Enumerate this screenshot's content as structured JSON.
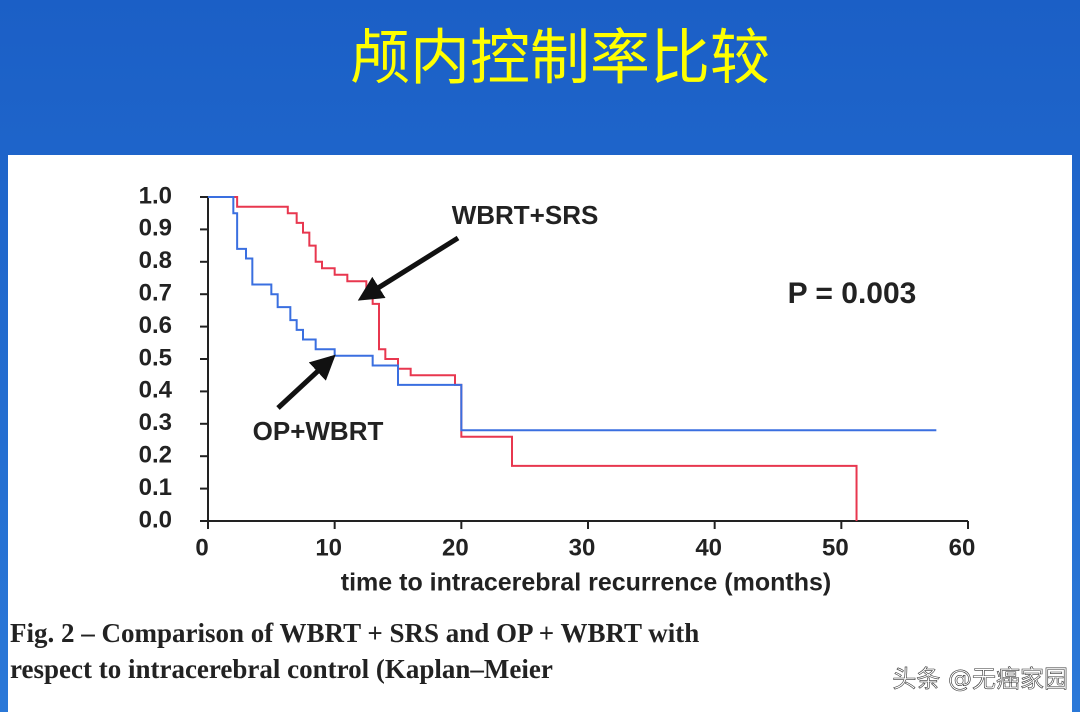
{
  "title": "颅内控制率比较",
  "chart_data": {
    "type": "line",
    "step": true,
    "series": [
      {
        "name": "WBRT+SRS",
        "color": "#e8374f",
        "x": [
          0,
          2.3,
          6.3,
          7,
          7.5,
          8,
          8.5,
          9,
          10,
          11,
          12.5,
          13,
          13.5,
          14,
          15,
          16,
          19.5,
          20,
          24,
          51,
          51.2
        ],
        "values": [
          1.0,
          0.97,
          0.95,
          0.92,
          0.89,
          0.85,
          0.8,
          0.78,
          0.76,
          0.74,
          0.72,
          0.67,
          0.53,
          0.5,
          0.47,
          0.45,
          0.42,
          0.26,
          0.17,
          0.17,
          0.0
        ]
      },
      {
        "name": "OP+WBRT",
        "color": "#3a6fe0",
        "x": [
          0,
          2,
          2.3,
          3,
          3.5,
          5,
          5.5,
          6.5,
          7,
          7.5,
          8.5,
          10,
          13,
          15,
          20,
          57.5
        ],
        "values": [
          1.0,
          0.95,
          0.84,
          0.81,
          0.73,
          0.7,
          0.66,
          0.62,
          0.59,
          0.56,
          0.53,
          0.51,
          0.48,
          0.42,
          0.28,
          0.28
        ]
      }
    ],
    "xlabel": "time to intracerebral recurrence (months)",
    "xlim": [
      0,
      60
    ],
    "xticks": [
      0,
      10,
      20,
      30,
      40,
      50,
      60
    ],
    "ylim": [
      0,
      1
    ],
    "yticks": [
      {
        "value": 0,
        "label": "0.0"
      },
      0.1,
      0.2,
      0.3,
      0.4,
      0.5,
      0.6,
      0.7,
      0.8,
      0.9,
      {
        "value": 1,
        "label": "1.0"
      }
    ],
    "annotations": [
      "P = 0.003"
    ]
  },
  "caption": [
    "Fig. 2 – Comparison of WBRT + SRS and OP + WBRT with",
    "respect to intracerebral control (Kaplan–Meier"
  ],
  "watermark": "头条 @无癌家园"
}
